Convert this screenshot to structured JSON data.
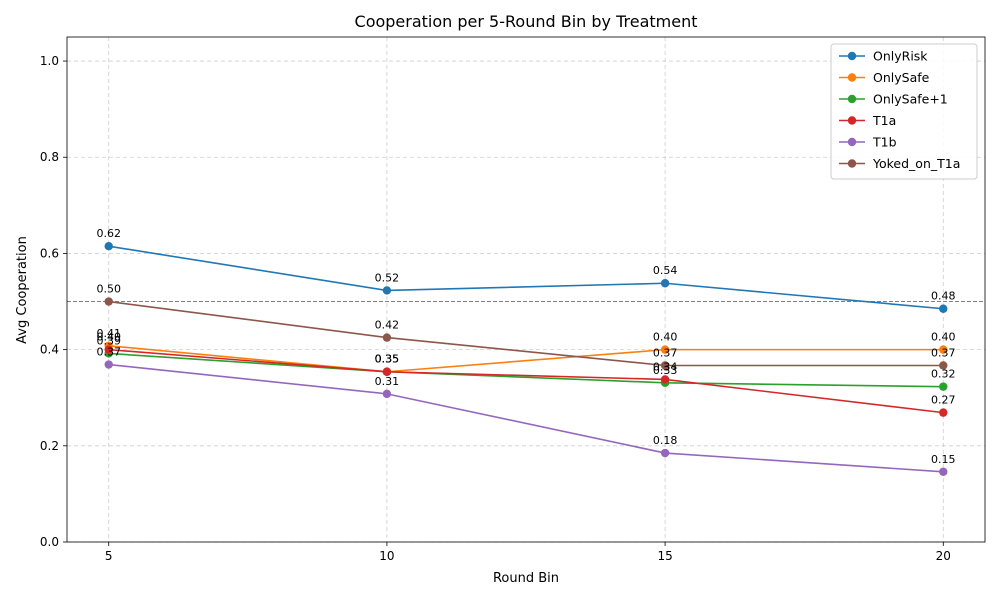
{
  "chart_data": {
    "type": "line",
    "title": "Cooperation per 5-Round Bin by Treatment",
    "xlabel": "Round Bin",
    "ylabel": "Avg Cooperation",
    "x": [
      5,
      10,
      15,
      20
    ],
    "xlim": [
      4.25,
      20.75
    ],
    "ylim": [
      0.0,
      1.05
    ],
    "yticks": [
      "0.0",
      "0.2",
      "0.4",
      "0.6",
      "0.8",
      "1.0"
    ],
    "ytick_values": [
      0.0,
      0.2,
      0.4,
      0.6,
      0.8,
      1.0
    ],
    "xticks": [
      "5",
      "10",
      "15",
      "20"
    ],
    "reference_line": 0.5,
    "grid": true,
    "legend_position": "top-right",
    "series": [
      {
        "name": "OnlyRisk",
        "color": "#1f77b4",
        "values": [
          0.615,
          0.523,
          0.538,
          0.485
        ],
        "labels": [
          "0.62",
          "0.52",
          "0.54",
          "0.48"
        ]
      },
      {
        "name": "OnlySafe",
        "color": "#ff7f0e",
        "values": [
          0.408,
          0.354,
          0.4,
          0.4
        ],
        "labels": [
          "0.41",
          "0.35",
          "0.40",
          "0.40"
        ]
      },
      {
        "name": "OnlySafe+1",
        "color": "#2ca02c",
        "values": [
          0.392,
          0.354,
          0.331,
          0.323
        ],
        "labels": [
          "0.39",
          "0.35",
          "0.33",
          "0.32"
        ]
      },
      {
        "name": "T1a",
        "color": "#d62728",
        "values": [
          0.4,
          0.354,
          0.338,
          0.269
        ],
        "labels": [
          "0.40",
          "0.35",
          "0.34",
          "0.27"
        ]
      },
      {
        "name": "T1b",
        "color": "#9467bd",
        "values": [
          0.369,
          0.308,
          0.185,
          0.146
        ],
        "labels": [
          "0.37",
          "0.31",
          "0.18",
          "0.15"
        ]
      },
      {
        "name": "Yoked_on_T1a",
        "color": "#8c564b",
        "values": [
          0.5,
          0.425,
          0.367,
          0.367
        ],
        "labels": [
          "0.50",
          "0.42",
          "0.37",
          "0.37"
        ]
      }
    ]
  }
}
